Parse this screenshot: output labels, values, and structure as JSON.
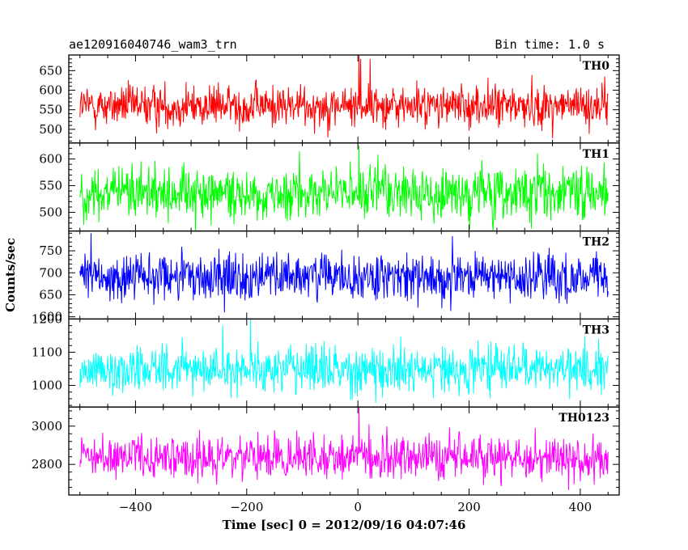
{
  "header": {
    "title": "ae120916040746_wam3_trn",
    "bin_time": "Bin time: 1.0 s"
  },
  "chart_data": {
    "type": "line",
    "layout": "stacked-panels",
    "xlabel": "Time [sec] 0 = 2012/09/16 04:07:46",
    "ylabel": "Counts/sec",
    "xlim": [
      -520,
      470
    ],
    "x_range": [
      -500,
      450
    ],
    "x_ticks": [
      -400,
      -200,
      0,
      200,
      400
    ],
    "x_tick_labels": [
      "−400",
      "−200",
      "0",
      "200",
      "400"
    ],
    "x_step": 1.0,
    "panels": [
      {
        "name": "TH0",
        "color": "#ff0000",
        "ylim": [
          465,
          690
        ],
        "y_ticks": [
          500,
          550,
          600,
          650
        ],
        "y_tick_labels": [
          "500",
          "550",
          "600",
          "650"
        ],
        "mean": 560,
        "sigma": 27,
        "features": [
          {
            "x": 2,
            "y": 690
          },
          {
            "x": 5,
            "y": 680
          },
          {
            "x": 22,
            "y": 680
          }
        ]
      },
      {
        "name": "TH1",
        "color": "#00ff00",
        "ylim": [
          465,
          630
        ],
        "y_ticks": [
          500,
          550,
          600
        ],
        "y_tick_labels": [
          "500",
          "550",
          "600"
        ],
        "mean": 535,
        "sigma": 25,
        "features": [
          {
            "x": 2,
            "y": 625
          }
        ]
      },
      {
        "name": "TH2",
        "color": "#0000ff",
        "ylim": [
          595,
          795
        ],
        "y_ticks": [
          600,
          650,
          700,
          750
        ],
        "y_tick_labels": [
          "600",
          "650",
          "700",
          "750"
        ],
        "mean": 690,
        "sigma": 28,
        "features": [
          {
            "x": -240,
            "y": 610
          },
          {
            "x": -480,
            "y": 790
          }
        ]
      },
      {
        "name": "TH3",
        "color": "#00ffff",
        "ylim": [
          935,
          1200
        ],
        "y_ticks": [
          1000,
          1100,
          1200
        ],
        "y_tick_labels": [
          "1000",
          "1100",
          "1200"
        ],
        "mean": 1050,
        "sigma": 35,
        "features": [
          {
            "x": -193,
            "y": 1200
          },
          {
            "x": -243,
            "y": 1180
          }
        ]
      },
      {
        "name": "TH0123",
        "color": "#ff00ff",
        "ylim": [
          2640,
          3100
        ],
        "y_ticks": [
          2800,
          3000
        ],
        "y_tick_labels": [
          "2800",
          "3000"
        ],
        "mean": 2830,
        "sigma": 58,
        "features": [
          {
            "x": 2,
            "y": 3100
          },
          {
            "x": 20,
            "y": 3010
          }
        ]
      }
    ]
  }
}
